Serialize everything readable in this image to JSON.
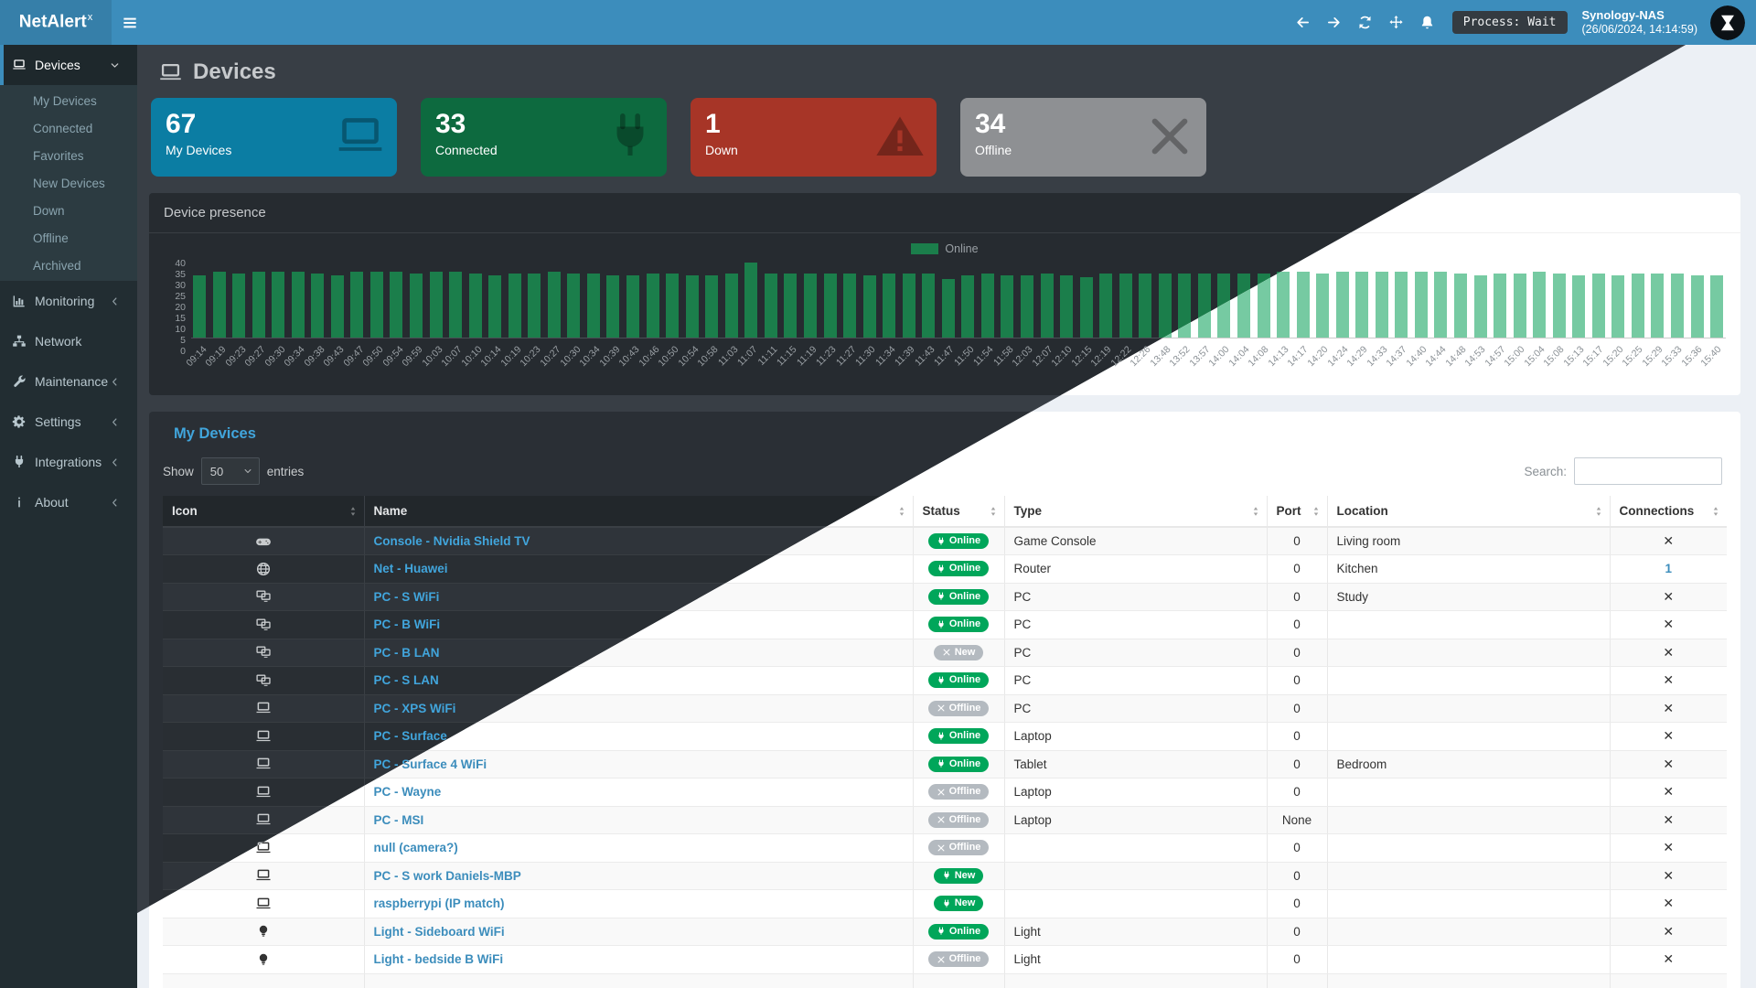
{
  "navbar": {
    "logo_text": "NetAlert",
    "logo_sup": "x",
    "icons": [
      "hamburger-menu",
      "arrow-left",
      "arrow-right",
      "refresh",
      "move",
      "bell"
    ],
    "process_badge": "Process: Wait",
    "host_name": "Synology-NAS",
    "host_time": "(26/06/2024, 14:14:59)",
    "accent_color": "#3c8dbc"
  },
  "sidebar": {
    "devices": {
      "label": "Devices",
      "icon": "laptop",
      "children": [
        "My Devices",
        "Connected",
        "Favorites",
        "New Devices",
        "Down",
        "Offline",
        "Archived"
      ]
    },
    "items": [
      {
        "label": "Monitoring",
        "icon": "chart",
        "chevron": true
      },
      {
        "label": "Network",
        "icon": "sitemap",
        "chevron": false
      },
      {
        "label": "Maintenance",
        "icon": "wrench",
        "chevron": true
      },
      {
        "label": "Settings",
        "icon": "gear",
        "chevron": true
      },
      {
        "label": "Integrations",
        "icon": "plug",
        "chevron": true
      },
      {
        "label": "About",
        "icon": "info",
        "chevron": true
      }
    ]
  },
  "page": {
    "title": "Devices",
    "title_icon": "laptop"
  },
  "cards": [
    {
      "value": "67",
      "label": "My Devices",
      "icon": "laptop",
      "color": "#0b7da3"
    },
    {
      "value": "33",
      "label": "Connected",
      "icon": "plug",
      "color": "#0d6a3f"
    },
    {
      "value": "1",
      "label": "Down",
      "icon": "warning",
      "color": "#a73527"
    },
    {
      "value": "34",
      "label": "Offline",
      "icon": "xmark",
      "color": "#8e9093"
    }
  ],
  "chart_data": {
    "type": "bar",
    "title": "Device presence",
    "legend": [
      "Online"
    ],
    "legend_position": "top-center",
    "ylabel": "",
    "xlabel": "",
    "ylim": [
      0,
      40
    ],
    "yticks": [
      40,
      35,
      30,
      25,
      20,
      15,
      10,
      5,
      0
    ],
    "grid": false,
    "bar_color_dark": "#1b7e4b",
    "bar_color_light": "#76caa2",
    "categories": [
      "09:14",
      "09:19",
      "09:23",
      "09:27",
      "09:30",
      "09:34",
      "09:38",
      "09:43",
      "09:47",
      "09:50",
      "09:54",
      "09:59",
      "10:03",
      "10:07",
      "10:10",
      "10:14",
      "10:19",
      "10:23",
      "10:27",
      "10:30",
      "10:34",
      "10:39",
      "10:43",
      "10:46",
      "10:50",
      "10:54",
      "10:58",
      "11:03",
      "11:07",
      "11:11",
      "11:15",
      "11:19",
      "11:23",
      "11:27",
      "11:30",
      "11:34",
      "11:39",
      "11:43",
      "11:47",
      "11:50",
      "11:54",
      "11:58",
      "12:03",
      "12:07",
      "12:10",
      "12:15",
      "12:19",
      "12:22",
      "12:26",
      "13:48",
      "13:52",
      "13:57",
      "14:00",
      "14:04",
      "14:08",
      "14:13",
      "14:17",
      "14:20",
      "14:24",
      "14:29",
      "14:33",
      "14:37",
      "14:40",
      "14:44",
      "14:48",
      "14:53",
      "14:57",
      "15:00",
      "15:04",
      "15:08",
      "15:13",
      "15:17",
      "15:20",
      "15:25",
      "15:29",
      "15:33",
      "15:36",
      "15:40"
    ],
    "values": [
      33,
      35,
      34,
      35,
      35,
      35,
      34,
      33,
      35,
      35,
      35,
      34,
      35,
      35,
      34,
      33,
      34,
      34,
      35,
      34,
      34,
      33,
      33,
      34,
      34,
      33,
      33,
      34,
      40,
      34,
      34,
      34,
      34,
      34,
      33,
      34,
      34,
      34,
      31,
      33,
      34,
      33,
      33,
      34,
      33,
      32,
      34,
      34,
      34,
      34,
      34,
      34,
      34,
      34,
      34,
      35,
      35,
      34,
      35,
      35,
      35,
      35,
      35,
      35,
      34,
      33,
      34,
      34,
      35,
      34,
      33,
      34,
      33,
      34,
      34,
      34,
      33,
      33
    ]
  },
  "table": {
    "section_title": "My Devices",
    "show_label": "Show",
    "page_size": "50",
    "entries_label": "entries",
    "search_label": "Search:",
    "search_value": "",
    "columns": [
      "Icon",
      "Name",
      "Status",
      "Type",
      "Port",
      "Location",
      "Connections"
    ],
    "status_colors": {
      "online_green": "#00a65a",
      "gray": "#b4bac0"
    },
    "rows": [
      {
        "icon": "gamepad",
        "name": "Console - Nvidia Shield TV",
        "status": {
          "label": "Online",
          "style": "green",
          "icon": "plug"
        },
        "type": "Game Console",
        "port": "0",
        "location": "Living room",
        "connections": "x"
      },
      {
        "icon": "globe",
        "name": "Net - Huawei",
        "status": {
          "label": "Online",
          "style": "green",
          "icon": "plug"
        },
        "type": "Router",
        "port": "0",
        "location": "Kitchen",
        "connections": "1"
      },
      {
        "icon": "desktop",
        "name": "PC - S WiFi",
        "status": {
          "label": "Online",
          "style": "green",
          "icon": "plug"
        },
        "type": "PC",
        "port": "0",
        "location": "Study",
        "connections": "x"
      },
      {
        "icon": "desktop",
        "name": "PC - B WiFi",
        "status": {
          "label": "Online",
          "style": "green",
          "icon": "plug"
        },
        "type": "PC",
        "port": "0",
        "location": "",
        "connections": "x"
      },
      {
        "icon": "desktop",
        "name": "PC - B LAN",
        "status": {
          "label": "New",
          "style": "gray",
          "icon": "xmark"
        },
        "type": "PC",
        "port": "0",
        "location": "",
        "connections": "x"
      },
      {
        "icon": "desktop",
        "name": "PC - S LAN",
        "status": {
          "label": "Online",
          "style": "green",
          "icon": "plug"
        },
        "type": "PC",
        "port": "0",
        "location": "",
        "connections": "x"
      },
      {
        "icon": "laptop",
        "name": "PC - XPS WiFi",
        "status": {
          "label": "Offline",
          "style": "gray",
          "icon": "xmark"
        },
        "type": "PC",
        "port": "0",
        "location": "",
        "connections": "x"
      },
      {
        "icon": "laptop",
        "name": "PC - Surface",
        "status": {
          "label": "Online",
          "style": "green",
          "icon": "plug"
        },
        "type": "Laptop",
        "port": "0",
        "location": "",
        "connections": "x"
      },
      {
        "icon": "laptop",
        "name": "PC - Surface 4 WiFi",
        "status": {
          "label": "Online",
          "style": "green",
          "icon": "plug"
        },
        "type": "Tablet",
        "port": "0",
        "location": "Bedroom",
        "connections": "x"
      },
      {
        "icon": "laptop",
        "name": "PC - Wayne",
        "status": {
          "label": "Offline",
          "style": "gray",
          "icon": "xmark"
        },
        "type": "Laptop",
        "port": "0",
        "location": "",
        "connections": "x"
      },
      {
        "icon": "laptop",
        "name": "PC - MSI",
        "status": {
          "label": "Offline",
          "style": "gray",
          "icon": "xmark"
        },
        "type": "Laptop",
        "port": "None",
        "location": "",
        "connections": "x"
      },
      {
        "icon": "laptop",
        "name": "null (camera?)",
        "status": {
          "label": "Offline",
          "style": "gray",
          "icon": "xmark"
        },
        "type": "",
        "port": "0",
        "location": "",
        "connections": "x"
      },
      {
        "icon": "laptop",
        "name": "PC - S work Daniels-MBP",
        "status": {
          "label": "New",
          "style": "green",
          "icon": "plug"
        },
        "type": "",
        "port": "0",
        "location": "",
        "connections": "x"
      },
      {
        "icon": "laptop",
        "name": "raspberrypi (IP match)",
        "status": {
          "label": "New",
          "style": "green",
          "icon": "plug"
        },
        "type": "",
        "port": "0",
        "location": "",
        "connections": "x"
      },
      {
        "icon": "bulb",
        "name": "Light - Sideboard WiFi",
        "status": {
          "label": "Online",
          "style": "green",
          "icon": "plug"
        },
        "type": "Light",
        "port": "0",
        "location": "",
        "connections": "x"
      },
      {
        "icon": "bulb",
        "name": "Light - bedside B WiFi",
        "status": {
          "label": "Offline",
          "style": "gray",
          "icon": "xmark"
        },
        "type": "Light",
        "port": "0",
        "location": "",
        "connections": "x"
      },
      {
        "icon": "",
        "name": "",
        "status": {
          "label": "",
          "style": "",
          "icon": ""
        },
        "type": "",
        "port": "",
        "location": "",
        "connections": "",
        "partial": true
      }
    ]
  }
}
